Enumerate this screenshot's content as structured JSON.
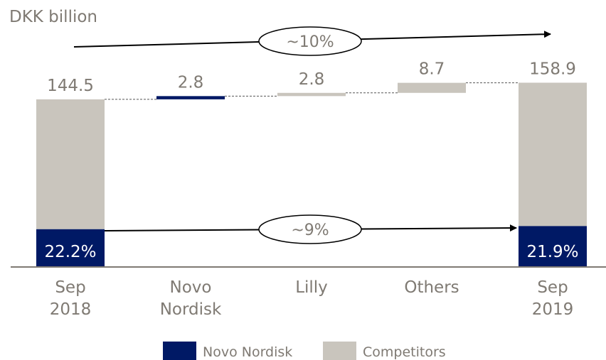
{
  "chart_data": {
    "type": "bar",
    "subtype": "waterfall",
    "unit_label": "DKK billion",
    "categories": [
      {
        "id": "sep2018",
        "lines": [
          "Sep",
          "2018"
        ]
      },
      {
        "id": "novo",
        "lines": [
          "Novo",
          "Nordisk"
        ]
      },
      {
        "id": "lilly",
        "lines": [
          "Lilly"
        ]
      },
      {
        "id": "others",
        "lines": [
          "Others"
        ]
      },
      {
        "id": "sep2019",
        "lines": [
          "Sep",
          "2019"
        ]
      }
    ],
    "bars": [
      {
        "category": "sep2018",
        "kind": "total",
        "value": 144.5,
        "label": "144.5",
        "novo_share_pct": 22.2,
        "share_label": "22.2%"
      },
      {
        "category": "novo",
        "kind": "increment",
        "value": 2.8,
        "label": "2.8",
        "series": "Novo Nordisk"
      },
      {
        "category": "lilly",
        "kind": "increment",
        "value": 2.8,
        "label": "2.8",
        "series": "Competitors"
      },
      {
        "category": "others",
        "kind": "increment",
        "value": 8.7,
        "label": "8.7",
        "series": "Competitors"
      },
      {
        "category": "sep2019",
        "kind": "total",
        "value": 158.9,
        "label": "158.9",
        "novo_share_pct": 21.9,
        "share_label": "21.9%"
      }
    ],
    "annotations": [
      {
        "id": "total_growth",
        "label": "~10%",
        "from": "sep2018",
        "to": "sep2019",
        "level": "top"
      },
      {
        "id": "novo_growth",
        "label": "~9%",
        "from": "sep2018",
        "to": "sep2019",
        "level": "bottom"
      }
    ],
    "legend": {
      "placement": "bottom",
      "items": [
        {
          "label": "Novo Nordisk",
          "color": "#001965"
        },
        {
          "label": "Competitors",
          "color": "#c9c5bd"
        }
      ]
    },
    "grid": false,
    "colors": {
      "novo": "#001965",
      "competitors": "#c9c5bd",
      "text": "#7f7a73",
      "axis": "#7f7a73",
      "arrow": "#000000"
    }
  }
}
